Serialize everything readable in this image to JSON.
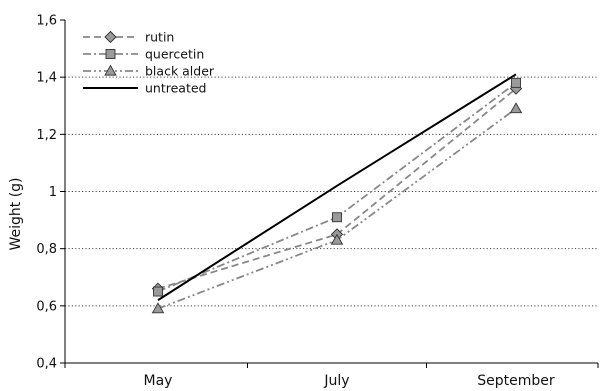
{
  "chart_data": {
    "type": "line",
    "title": "",
    "xlabel": "",
    "ylabel": "Weight (g)",
    "categories": [
      "May",
      "July",
      "September"
    ],
    "ylim": [
      0.4,
      1.6
    ],
    "yticks": [
      "0,4",
      "0,6",
      "0,8",
      "1",
      "1,2",
      "1,4",
      "1,6"
    ],
    "grid": "horizontal dotted",
    "legend_position": "top-left",
    "series": [
      {
        "name": "rutin",
        "values": [
          0.66,
          0.85,
          1.36
        ],
        "marker": "diamond",
        "dash": "dashed",
        "color": "#888888"
      },
      {
        "name": "quercetin",
        "values": [
          0.65,
          0.91,
          1.38
        ],
        "marker": "square",
        "dash": "dash-dot",
        "color": "#888888"
      },
      {
        "name": "black alder",
        "values": [
          0.59,
          0.83,
          1.29
        ],
        "marker": "triangle",
        "dash": "dash-dot-dot",
        "color": "#888888"
      },
      {
        "name": "untreated",
        "values": [
          0.62,
          1.02,
          1.41
        ],
        "marker": "none",
        "dash": "solid",
        "color": "#000000"
      }
    ]
  }
}
